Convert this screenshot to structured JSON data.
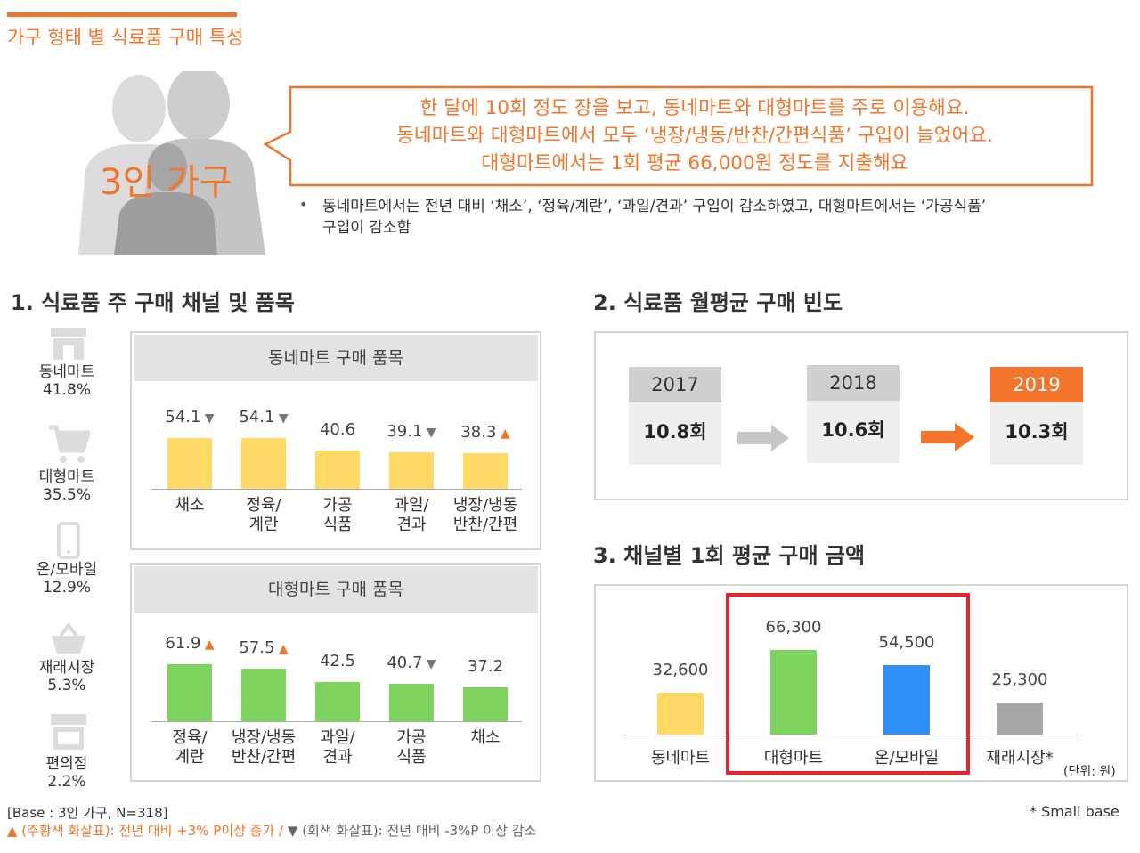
{
  "colors": {
    "accent": "#f2752b",
    "yellow_bar": "#ffd966",
    "green_bar": "#7ed35f",
    "blue_bar": "#2f8ef7",
    "gray_bar": "#a6a6a6",
    "highlight_border": "#e8242a"
  },
  "header": {
    "title": "가구 형태 별 식료품 구매 특성"
  },
  "profile": {
    "household_label": "3인 가구",
    "callout_lines": [
      "한 달에 10회 정도 장을 보고, 동네마트와 대형마트를 주로 이용해요.",
      "동네마트와 대형마트에서 모두 ‘냉장/냉동/반찬/간편식품’ 구입이 늘었어요.",
      "대형마트에서는 1회 평균 66,000원 정도를 지출해요"
    ],
    "note_line1": "동네마트에서는 전년 대비 ‘채소’, ‘정육/계란’, ‘과일/견과’ 구입이 감소하였고, 대형마트에서는 ‘가공식품’",
    "note_line2": "구입이 감소함"
  },
  "section1": {
    "title": "1. 식료품 주 구매 채널 및 품목",
    "channels": [
      {
        "name": "동네마트",
        "pct": "41.8%",
        "icon": "store-icon"
      },
      {
        "name": "대형마트",
        "pct": "35.5%",
        "icon": "cart-icon"
      },
      {
        "name": "온/모바일",
        "pct": "12.9%",
        "icon": "mobile-icon"
      },
      {
        "name": "재래시장",
        "pct": "5.3%",
        "icon": "basket-icon"
      },
      {
        "name": "편의점",
        "pct": "2.2%",
        "icon": "convenience-store-icon"
      }
    ]
  },
  "chart_data": [
    {
      "type": "bar",
      "title": "동네마트 구매 품목",
      "categories": [
        [
          "채소"
        ],
        [
          "정육/",
          "계란"
        ],
        [
          "가공",
          "식품"
        ],
        [
          "과일/",
          "견과"
        ],
        [
          "냉장/냉동",
          "반찬/간편"
        ]
      ],
      "values": [
        54.1,
        54.1,
        40.6,
        39.1,
        38.3
      ],
      "value_labels": [
        "54.1",
        "54.1",
        "40.6",
        "39.1",
        "38.3"
      ],
      "trend": [
        "down",
        "down",
        "",
        "down",
        "up"
      ]
    },
    {
      "type": "bar",
      "title": "대형마트 구매 품목",
      "categories": [
        [
          "정육/",
          "계란"
        ],
        [
          "냉장/냉동",
          "반찬/간편"
        ],
        [
          "과일/",
          "견과"
        ],
        [
          "가공",
          "식품"
        ],
        [
          "채소"
        ]
      ],
      "values": [
        61.9,
        57.5,
        42.5,
        40.7,
        37.2
      ],
      "value_labels": [
        "61.9",
        "57.5",
        "42.5",
        "40.7",
        "37.2"
      ],
      "trend": [
        "up",
        "up",
        "",
        "down",
        ""
      ]
    },
    {
      "type": "bar",
      "title": "3. 채널별 1회 평균 구매 금액",
      "categories": [
        "동네마트",
        "대형마트",
        "온/모바일",
        "재래시장*"
      ],
      "values": [
        32600,
        66300,
        54500,
        25300
      ],
      "value_labels": [
        "32,600",
        "66,300",
        "54,500",
        "25,300"
      ],
      "unit_note": "(단위: 원)"
    }
  ],
  "section2": {
    "title": "2. 식료품 월평균 구매 빈도",
    "years": [
      {
        "year": "2017",
        "value": "10.8회"
      },
      {
        "year": "2018",
        "value": "10.6회"
      },
      {
        "year": "2019",
        "value": "10.3회"
      }
    ]
  },
  "footer": {
    "base": "[Base : 3인 가구, N=318]",
    "legend_up": "▲ (주황색  화살표): 전년 대비 +3% P이상 증가 /",
    "legend_down": "▼ (회색 화살표): 전년 대비 -3%P 이상 감소",
    "small_base": "*  Small base"
  }
}
